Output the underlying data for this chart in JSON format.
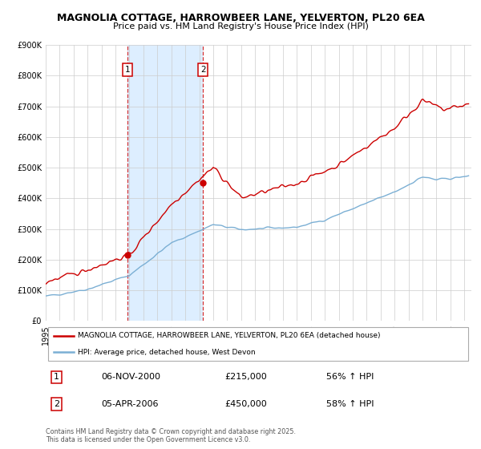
{
  "title": "MAGNOLIA COTTAGE, HARROWBEER LANE, YELVERTON, PL20 6EA",
  "subtitle": "Price paid vs. HM Land Registry's House Price Index (HPI)",
  "legend_label_red": "MAGNOLIA COTTAGE, HARROWBEER LANE, YELVERTON, PL20 6EA (detached house)",
  "legend_label_blue": "HPI: Average price, detached house, West Devon",
  "footer": "Contains HM Land Registry data © Crown copyright and database right 2025.\nThis data is licensed under the Open Government Licence v3.0.",
  "sale1_date": 2000.85,
  "sale1_price": 215000,
  "sale1_label": "06-NOV-2000",
  "sale1_price_label": "£215,000",
  "sale1_hpi_label": "56% ↑ HPI",
  "sale2_date": 2006.27,
  "sale2_price": 450000,
  "sale2_label": "05-APR-2006",
  "sale2_price_label": "£450,000",
  "sale2_hpi_label": "58% ↑ HPI",
  "ylim": [
    0,
    900000
  ],
  "xlim_start": 1995.0,
  "xlim_end": 2025.5,
  "red_color": "#cc0000",
  "blue_color": "#7bafd4",
  "shade_color": "#ddeeff",
  "background_color": "#ffffff",
  "grid_color": "#cccccc"
}
